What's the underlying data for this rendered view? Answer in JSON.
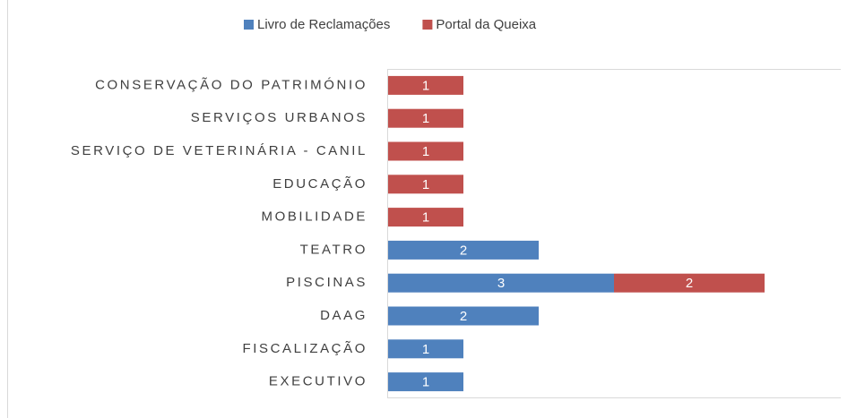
{
  "chart_data": {
    "type": "stacked-bar-horizontal",
    "categories": [
      "CONSERVAÇÃO DO PATRIMÓNIO",
      "SERVIÇOS URBANOS",
      "SERVIÇO DE VETERINÁRIA - CANIL",
      "EDUCAÇÃO",
      "MOBILIDADE",
      "TEATRO",
      "PISCINAS",
      "DAAG",
      "FISCALIZAÇÃO",
      "EXECUTIVO"
    ],
    "series": [
      {
        "name": "Livro de Reclamações",
        "color": "#4f81bd",
        "values": [
          null,
          null,
          null,
          null,
          null,
          2,
          3,
          2,
          1,
          1
        ]
      },
      {
        "name": "Portal da Queixa",
        "color": "#c0504d",
        "values": [
          1,
          1,
          1,
          1,
          1,
          null,
          2,
          null,
          null,
          null
        ]
      }
    ],
    "xlim": [
      0,
      6
    ],
    "legend": "top"
  }
}
